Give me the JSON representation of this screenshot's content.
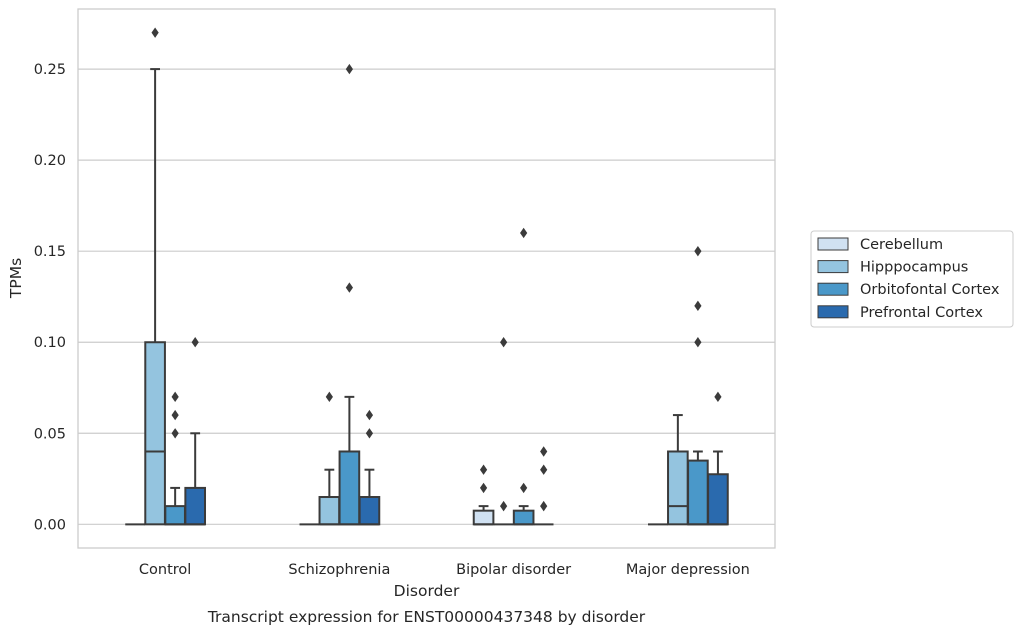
{
  "caption": "Transcript expression for ENST00000437348 by disorder",
  "chart_data": {
    "type": "box",
    "title": "",
    "xlabel": "Disorder",
    "ylabel": "TPMs",
    "ylim": [
      -0.013,
      0.283
    ],
    "yticks": [
      0.0,
      0.05,
      0.1,
      0.15,
      0.2,
      0.25
    ],
    "ytick_labels": [
      "0.00",
      "0.05",
      "0.10",
      "0.15",
      "0.20",
      "0.25"
    ],
    "grid": "horizontal",
    "legend_position": "right, outside plot",
    "categories": [
      "Control",
      "Schizophrenia",
      "Bipolar disorder",
      "Major depression"
    ],
    "series": [
      {
        "name": "Cerebellum",
        "color": "#d0e1f2",
        "boxes": [
          {
            "q1": 0,
            "median": 0,
            "q3": 0,
            "whisker_low": 0,
            "whisker_high": 0,
            "outliers": []
          },
          {
            "q1": 0,
            "median": 0,
            "q3": 0,
            "whisker_low": 0,
            "whisker_high": 0,
            "outliers": []
          },
          {
            "q1": 0,
            "median": 0,
            "q3": 0.0075,
            "whisker_low": 0,
            "whisker_high": 0.01,
            "outliers": [
              0.02,
              0.03
            ]
          },
          {
            "q1": 0,
            "median": 0,
            "q3": 0,
            "whisker_low": 0,
            "whisker_high": 0,
            "outliers": []
          }
        ]
      },
      {
        "name": "Hipppocampus",
        "color": "#94c4df",
        "boxes": [
          {
            "q1": 0,
            "median": 0.04,
            "q3": 0.1,
            "whisker_low": 0,
            "whisker_high": 0.25,
            "outliers": [
              0.27
            ]
          },
          {
            "q1": 0,
            "median": 0,
            "q3": 0.015,
            "whisker_low": 0,
            "whisker_high": 0.03,
            "outliers": [
              0.07
            ]
          },
          {
            "q1": 0,
            "median": 0,
            "q3": 0,
            "whisker_low": 0,
            "whisker_high": 0,
            "outliers": [
              0.01,
              0.1
            ]
          },
          {
            "q1": 0,
            "median": 0.01,
            "q3": 0.04,
            "whisker_low": 0,
            "whisker_high": 0.06,
            "outliers": []
          }
        ]
      },
      {
        "name": "Orbitofontal Cortex",
        "color": "#4a98c9",
        "boxes": [
          {
            "q1": 0,
            "median": 0,
            "q3": 0.01,
            "whisker_low": 0,
            "whisker_high": 0.02,
            "outliers": [
              0.05,
              0.06,
              0.07
            ]
          },
          {
            "q1": 0,
            "median": 0,
            "q3": 0.04,
            "whisker_low": 0,
            "whisker_high": 0.07,
            "outliers": [
              0.13,
              0.25
            ]
          },
          {
            "q1": 0,
            "median": 0,
            "q3": 0.0075,
            "whisker_low": 0,
            "whisker_high": 0.01,
            "outliers": [
              0.02,
              0.16
            ]
          },
          {
            "q1": 0,
            "median": 0,
            "q3": 0.035,
            "whisker_low": 0,
            "whisker_high": 0.04,
            "outliers": [
              0.1,
              0.12,
              0.15
            ]
          }
        ]
      },
      {
        "name": "Prefrontal Cortex",
        "color": "#2a6aae",
        "boxes": [
          {
            "q1": 0,
            "median": 0,
            "q3": 0.02,
            "whisker_low": 0,
            "whisker_high": 0.05,
            "outliers": [
              0.1
            ]
          },
          {
            "q1": 0,
            "median": 0,
            "q3": 0.015,
            "whisker_low": 0,
            "whisker_high": 0.03,
            "outliers": [
              0.05,
              0.06
            ]
          },
          {
            "q1": 0,
            "median": 0,
            "q3": 0,
            "whisker_low": 0,
            "whisker_high": 0,
            "outliers": [
              0.01,
              0.03,
              0.04
            ]
          },
          {
            "q1": 0,
            "median": 0,
            "q3": 0.0275,
            "whisker_low": 0,
            "whisker_high": 0.04,
            "outliers": [
              0.07
            ]
          }
        ]
      }
    ]
  }
}
